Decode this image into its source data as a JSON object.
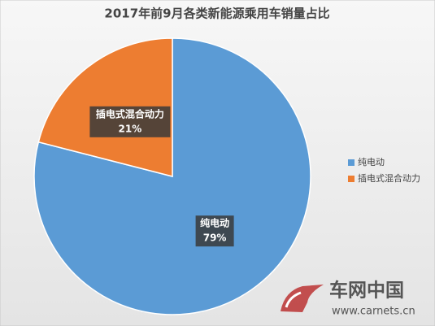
{
  "chart_data": {
    "type": "pie",
    "title": "2017年前9月各类新能源乘用车销量占比",
    "categories": [
      "纯电动",
      "插电式混合动力"
    ],
    "values": [
      79,
      21
    ],
    "value_labels": [
      "79%",
      "21%"
    ],
    "colors": [
      "#5b9bd5",
      "#ed7d31"
    ],
    "legend": "right",
    "watermark": {
      "name": "车网中国",
      "url": "www.carnets.cn"
    }
  }
}
